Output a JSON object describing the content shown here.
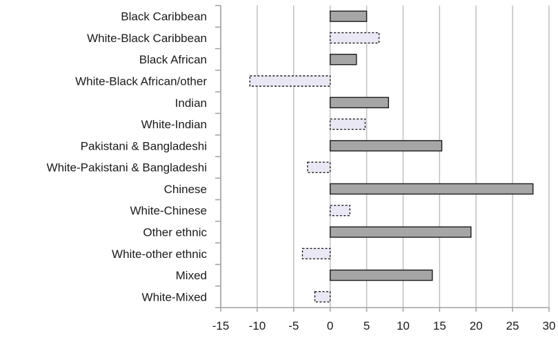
{
  "chart_data": {
    "type": "bar",
    "orientation": "horizontal",
    "categories": [
      "Black Caribbean",
      "White-Black Caribbean",
      "Black African",
      "White-Black African/other",
      "Indian",
      "White-Indian",
      "Pakistani & Bangladeshi",
      "White-Pakistani & Bangladeshi",
      "Chinese",
      "White-Chinese",
      "Other ethnic",
      "White-other ethnic",
      "Mixed",
      "White-Mixed"
    ],
    "values": [
      5.0,
      6.7,
      3.6,
      -11.0,
      8.0,
      4.8,
      15.3,
      -3.1,
      27.8,
      2.7,
      19.3,
      -3.8,
      14.0,
      -2.1
    ],
    "styles": [
      "solid",
      "dotted",
      "solid",
      "dotted",
      "solid",
      "dotted",
      "solid",
      "dotted",
      "solid",
      "dotted",
      "solid",
      "dotted",
      "solid",
      "dotted"
    ],
    "xlim": [
      -15,
      30
    ],
    "xticks": [
      -15,
      -10,
      -5,
      0,
      5,
      10,
      15,
      20,
      25,
      30
    ],
    "xtick_labels": [
      "-15",
      "-10",
      "-5",
      "0",
      "5",
      "10",
      "15",
      "20",
      "25",
      "30"
    ],
    "title": "",
    "xlabel": "",
    "ylabel": "",
    "grid": "vertical",
    "colors": {
      "solid_fill": "#a6a6a6",
      "solid_stroke": "#1a1a1a",
      "dotted_fill": "#ebe8f5",
      "dotted_stroke": "#1a1a1a",
      "gridline": "#c0c0c0",
      "axis": "#a0a0a0"
    }
  }
}
